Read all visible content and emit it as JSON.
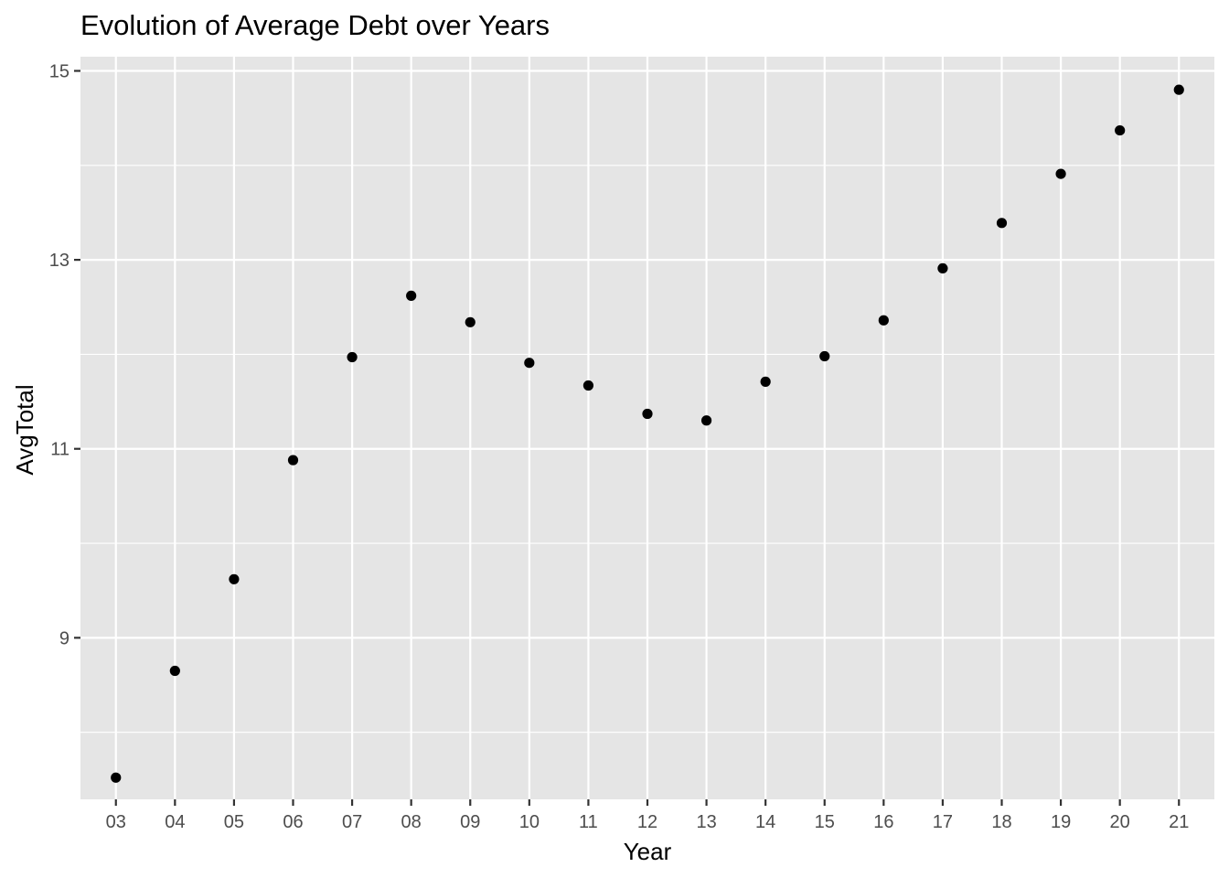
{
  "chart_data": {
    "type": "scatter",
    "title": "Evolution of Average Debt over Years",
    "xlabel": "Year",
    "ylabel": "AvgTotal",
    "categories": [
      "03",
      "04",
      "05",
      "06",
      "07",
      "08",
      "09",
      "10",
      "11",
      "12",
      "13",
      "14",
      "15",
      "16",
      "17",
      "18",
      "19",
      "20",
      "21"
    ],
    "values": [
      7.52,
      8.65,
      9.62,
      10.88,
      11.97,
      12.62,
      12.34,
      11.91,
      11.67,
      11.37,
      11.3,
      11.71,
      11.98,
      12.36,
      12.91,
      13.39,
      13.91,
      14.37,
      14.8
    ],
    "yticks": [
      9,
      11,
      13,
      15
    ],
    "yticks_labels": [
      "9",
      "11",
      "13",
      "15"
    ],
    "ylim": [
      7.29,
      15.15
    ],
    "grid": true,
    "colors": {
      "panel": "#e5e5e5",
      "grid": "#ffffff",
      "point": "#000000",
      "tick": "#333333"
    }
  }
}
